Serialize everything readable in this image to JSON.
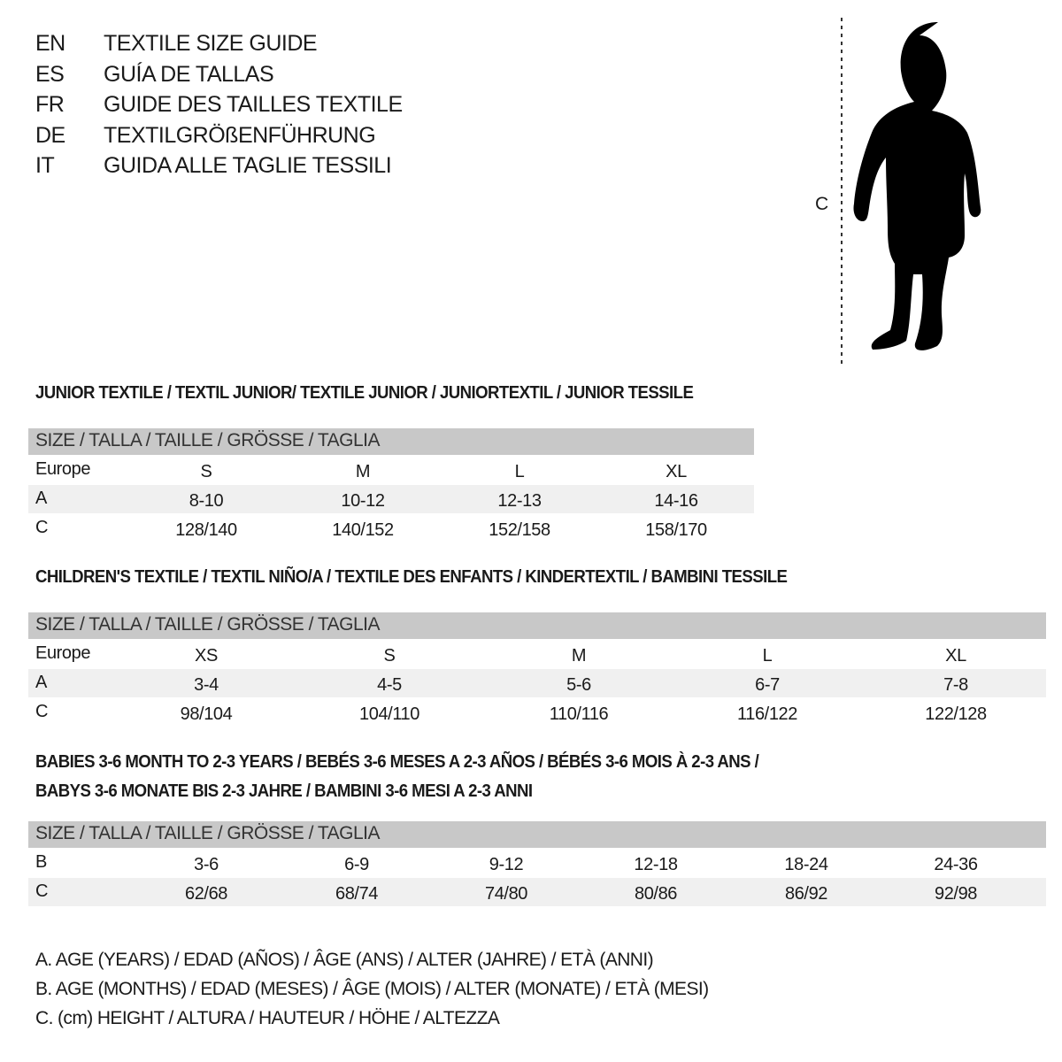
{
  "titles": [
    {
      "code": "EN",
      "text": "TEXTILE SIZE GUIDE"
    },
    {
      "code": "ES",
      "text": "GUÍA DE TALLAS"
    },
    {
      "code": "FR",
      "text": "GUIDE DES TAILLES TEXTILE"
    },
    {
      "code": "DE",
      "text": "TEXTILGRÖßENFÜHRUNG"
    },
    {
      "code": "IT",
      "text": "GUIDA ALLE TAGLIE TESSILI"
    }
  ],
  "figure": {
    "measure_label": "C",
    "icon": "child-silhouette-icon"
  },
  "tables": [
    {
      "title": "JUNIOR TEXTILE / TEXTIL JUNIOR/ TEXTILE JUNIOR / JUNIORTEXTIL / JUNIOR TESSILE",
      "header": "SIZE / TALLA / TAILLE / GRÖSSE / TAGLIA",
      "rows": [
        {
          "label": "Europe",
          "values": [
            "S",
            "M",
            "L",
            "XL"
          ]
        },
        {
          "label": "A",
          "values": [
            "8-10",
            "10-12",
            "12-13",
            "14-16"
          ]
        },
        {
          "label": "C",
          "values": [
            "128/140",
            "140/152",
            "152/158",
            "158/170"
          ]
        }
      ]
    },
    {
      "title": "CHILDREN'S TEXTILE / TEXTIL NIÑO/A / TEXTILE DES ENFANTS / KINDERTEXTIL / BAMBINI TESSILE",
      "header": "SIZE / TALLA / TAILLE / GRÖSSE / TAGLIA",
      "rows": [
        {
          "label": "Europe",
          "values": [
            "XS",
            "S",
            "M",
            "L",
            "XL"
          ]
        },
        {
          "label": "A",
          "values": [
            "3-4",
            "4-5",
            "5-6",
            "6-7",
            "7-8"
          ]
        },
        {
          "label": "C",
          "values": [
            "98/104",
            "104/110",
            "110/116",
            "116/122",
            "122/128"
          ]
        }
      ]
    },
    {
      "title": "BABIES 3-6 MONTH TO 2-3 YEARS / BEBÉS 3-6 MESES A 2-3 AÑOS / BÉBÉS 3-6 MOIS À 2-3 ANS /",
      "title2": "BABYS 3-6 MONATE BIS 2-3 JAHRE / BAMBINI 3-6 MESI A 2-3 ANNI",
      "header": "SIZE / TALLA / TAILLE / GRÖSSE / TAGLIA",
      "rows": [
        {
          "label": "B",
          "values": [
            "3-6",
            "6-9",
            "9-12",
            "12-18",
            "18-24",
            "24-36"
          ]
        },
        {
          "label": "C",
          "values": [
            "62/68",
            "68/74",
            "74/80",
            "80/86",
            "86/92",
            "92/98"
          ]
        }
      ]
    }
  ],
  "legend": [
    "A. AGE (YEARS) / EDAD (AÑOS) / ÂGE (ANS) / ALTER (JAHRE) / ETÀ (ANNI)",
    "B. AGE (MONTHS) / EDAD (MESES) / ÂGE (MOIS) / ALTER (MONATE) / ETÀ (MESI)",
    "C. (cm) HEIGHT / ALTURA / HAUTEUR / HÖHE / ALTEZZA"
  ]
}
